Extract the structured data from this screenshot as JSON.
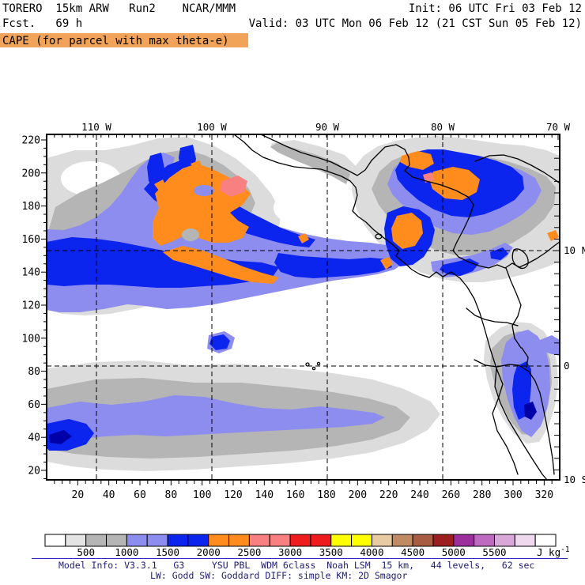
{
  "header": {
    "line1_left": "TORERO  15km ARW   Run2    NCAR/MMM",
    "line1_right": "Init: 06 UTC Fri 03 Feb 12",
    "line2_left": "Fcst.   69 h",
    "line2_right": "Valid: 03 UTC Mon 06 Feb 12 (21 CST Sun 05 Feb 12)",
    "variable_title": "CAPE (for parcel with max theta-e)",
    "highlight_color": "#F2A35A"
  },
  "chart_data": {
    "type": "heatmap",
    "subtype": "filled-contour weather map",
    "title": "CAPE (for parcel with max theta-e)",
    "model": "TORERO 15km ARW Run2 NCAR/MMM",
    "init_time": "06 UTC Fri 03 Feb 12",
    "forecast_hour": "69 h",
    "valid_time": "03 UTC Mon 06 Feb 12 (21 CST Sun 05 Feb 12)",
    "units": "J kg-1",
    "x_axis": {
      "tick_start": 20,
      "tick_end": 320,
      "tick_step": 20,
      "minor_step": 5,
      "kind": "grid points"
    },
    "y_axis": {
      "tick_start": 20,
      "tick_end": 220,
      "tick_step": 20,
      "minor_step": 5,
      "kind": "grid points"
    },
    "top_axis": {
      "ticks": [
        {
          "lon": 110,
          "label": "110 W"
        },
        {
          "lon": 100,
          "label": "100 W"
        },
        {
          "lon": 90,
          "label": "90 W"
        },
        {
          "lon": 80,
          "label": "80 W"
        },
        {
          "lon": 70,
          "label": "70 W"
        }
      ]
    },
    "right_axis": {
      "ticks": [
        {
          "lat": 10,
          "label": "10 N"
        },
        {
          "lat": 0,
          "label": "0"
        },
        {
          "lat": -10,
          "label": "10 S"
        }
      ]
    },
    "grid": {
      "dashed_lons": [
        110,
        100,
        90,
        80
      ],
      "dashed_lats": [
        10,
        0
      ]
    },
    "colorbar": {
      "min": 0,
      "interval": 250,
      "cell_colors": [
        "#FFFFFF",
        "#E4E4E4",
        "#B5B5B5",
        "#B5B5B5",
        "#8D8DF0",
        "#8D8DF0",
        "#0B24EE",
        "#0B24EE",
        "#FF8C1C",
        "#FF8C1C",
        "#F98080",
        "#F98080",
        "#EE1C1C",
        "#EE1C1C",
        "#FFFF00",
        "#FFFF00",
        "#E8CBA2",
        "#C08A62",
        "#A85C42",
        "#9C1E1E",
        "#9C2F9C",
        "#BE6AC0",
        "#D8A8D8",
        "#EFD9EF",
        "#FFFFFF"
      ],
      "boundary_labels": [
        "500",
        "1000",
        "1500",
        "2000",
        "2500",
        "3000",
        "3500",
        "4000",
        "4500",
        "5000",
        "5500"
      ],
      "unit_base": "J kg",
      "unit_exponent": "-1"
    },
    "map_palette": {
      "white_0_250": "#FFFFFF",
      "light_gray_250_500": "#DCDCDC",
      "gray_500_1000": "#B5B5B5",
      "light_blue_1000_1500": "#8D8DF0",
      "blue_1500_2000": "#0B24EE",
      "orange_2000_2500": "#FF8C1C",
      "salmon_2500_3000": "#F98080"
    },
    "features": [
      {
        "region": "Pacific SW of Mexico (upper-left)",
        "cape": "1500-3000 J/kg; large orange core 2000-2500 with small salmon 2500-3000 patch"
      },
      {
        "region": "Caribbean N of Honduras (upper-right)",
        "cape": "1500-2500 J/kg; two orange cores inside blue area with tiny salmon spot"
      },
      {
        "region": "Costa Rica / SW Caribbean",
        "cape": "1500-2500 J/kg blue blob with orange core"
      },
      {
        "region": "ITCZ band along 10N",
        "cape": "1000-2000 J/kg blue/light-blue band spanning map width"
      },
      {
        "region": "South of equator band (lower-left)",
        "cape": "250-2000 J/kg gray band with light-blue snake and blue blob at left edge"
      },
      {
        "region": "NW South America / Andes (right edge)",
        "cape": "1000-2000 J/kg vertical blue band"
      }
    ]
  },
  "footer": {
    "line1": "Model Info: V3.3.1   G3     YSU PBL  WDM 6class  Noah LSM  15 km,   44 levels,   62 sec",
    "line2": "LW: Godd SW: Goddard DIFF: simple KM: 2D Smagor",
    "rule_color": "#2A2AC8",
    "text_color": "#202078"
  }
}
